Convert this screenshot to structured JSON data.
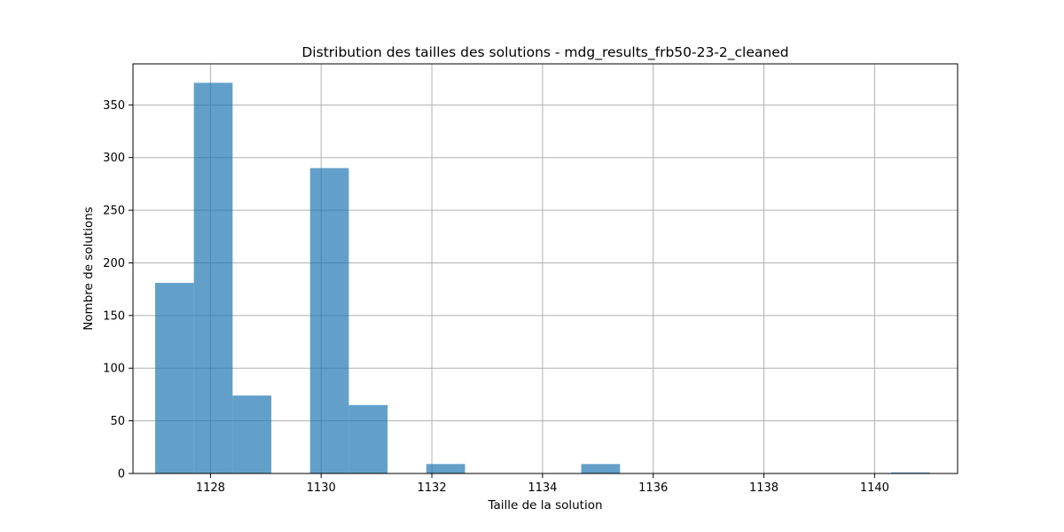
{
  "chart_data": {
    "type": "bar",
    "title": "Distribution des tailles des solutions - mdg_results_frb50-23-2_cleaned",
    "xlabel": "Taille de la solution",
    "ylabel": "Nombre de solutions",
    "xlim": [
      1126.6,
      1141.5
    ],
    "ylim": [
      0,
      389
    ],
    "grid": true,
    "xticks": [
      1128,
      1130,
      1132,
      1134,
      1136,
      1138,
      1140
    ],
    "yticks": [
      0,
      50,
      100,
      150,
      200,
      250,
      300,
      350
    ],
    "bar_color": "#1f77b4",
    "bins": [
      {
        "x0": 1127.0,
        "x1": 1127.7,
        "value": 181
      },
      {
        "x0": 1127.7,
        "x1": 1128.4,
        "value": 371
      },
      {
        "x0": 1128.4,
        "x1": 1129.1,
        "value": 74
      },
      {
        "x0": 1129.1,
        "x1": 1129.8,
        "value": 0
      },
      {
        "x0": 1129.8,
        "x1": 1130.5,
        "value": 290
      },
      {
        "x0": 1130.5,
        "x1": 1131.2,
        "value": 65
      },
      {
        "x0": 1131.2,
        "x1": 1131.9,
        "value": 0
      },
      {
        "x0": 1131.9,
        "x1": 1132.6,
        "value": 9
      },
      {
        "x0": 1132.6,
        "x1": 1133.3,
        "value": 0
      },
      {
        "x0": 1133.3,
        "x1": 1134.0,
        "value": 0
      },
      {
        "x0": 1134.0,
        "x1": 1134.7,
        "value": 0
      },
      {
        "x0": 1134.7,
        "x1": 1135.4,
        "value": 9
      },
      {
        "x0": 1135.4,
        "x1": 1136.1,
        "value": 0
      },
      {
        "x0": 1136.1,
        "x1": 1136.8,
        "value": 0
      },
      {
        "x0": 1136.8,
        "x1": 1137.5,
        "value": 0
      },
      {
        "x0": 1137.5,
        "x1": 1138.2,
        "value": 0
      },
      {
        "x0": 1138.2,
        "x1": 1138.9,
        "value": 0
      },
      {
        "x0": 1138.9,
        "x1": 1139.6,
        "value": 0
      },
      {
        "x0": 1139.6,
        "x1": 1140.3,
        "value": 0
      },
      {
        "x0": 1140.3,
        "x1": 1141.0,
        "value": 1
      }
    ]
  }
}
